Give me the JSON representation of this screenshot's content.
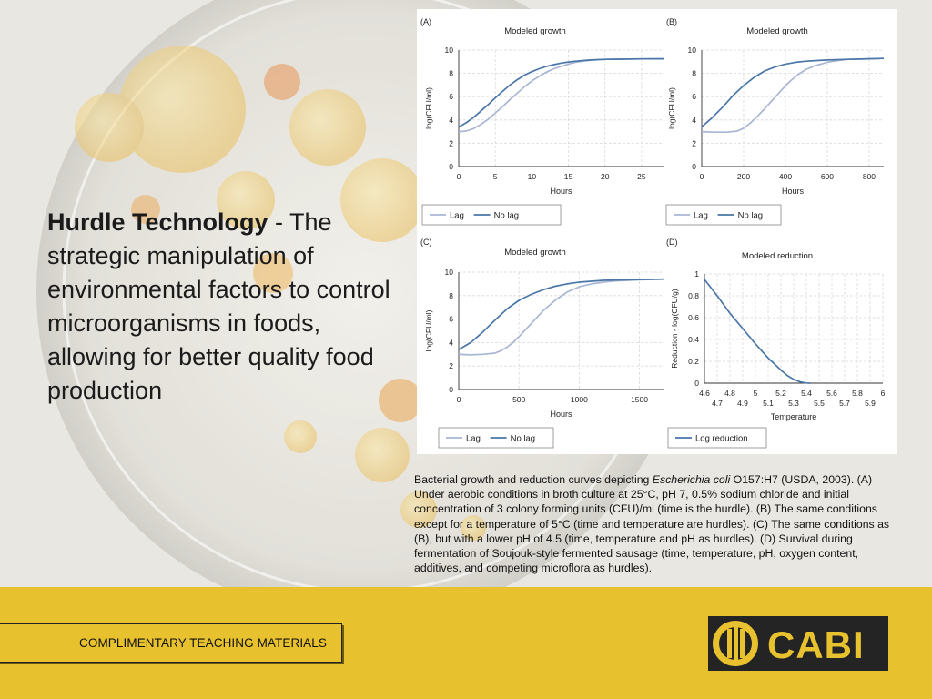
{
  "heading": {
    "bold": "Hurdle Technology",
    "rest": " - The strategic manipulation of environmental factors to control microorganisms in foods, allowing for better quality food production"
  },
  "caption": {
    "before": "Bacterial growth and reduction curves depicting ",
    "italic": "Escherichia coli",
    "after": " O157:H7 (USDA, 2003). (A) Under aerobic conditions in broth culture at 25°C, pH 7, 0.5% sodium chloride and initial concentration of 3 colony forming units (CFU)/ml (time is the hurdle). (B) The same conditions except for a temperature of 5°C (time and temperature are hurdles). (C) The same conditions as (B), but with a lower pH of 4.5 (time, temperature and pH as hurdles). (D) Survival during fermentation of Soujouk-style fermented sausage (time, temperature, pH, oxygen content, additives, and competing microflora as hurdles)."
  },
  "footer": {
    "teaching": "COMPLIMENTARY TEACHING MATERIALS",
    "logo_text": "CABI"
  },
  "colors": {
    "lag": "#a9b6d2",
    "no_lag": "#4a76a8",
    "footer": "#e7c12e",
    "logo_bg": "#242424"
  },
  "chart_data": [
    {
      "panel": "(A)",
      "type": "line",
      "title": "Modeled growth",
      "xlabel": "Hours",
      "ylabel": "log(CFU/ml)",
      "xlim": [
        0,
        28
      ],
      "ylim": [
        0,
        10
      ],
      "xticks": [
        0,
        5,
        10,
        15,
        20,
        25
      ],
      "yticks": [
        0,
        2,
        4,
        6,
        8,
        10
      ],
      "grid": true,
      "legend": "bottom-left",
      "series": [
        {
          "name": "Lag",
          "x": [
            0,
            1,
            2,
            3,
            4,
            5,
            6,
            7,
            8,
            9,
            10,
            11,
            12,
            13,
            14,
            15,
            16,
            17,
            18,
            20,
            22,
            25,
            28
          ],
          "y": [
            3.0,
            3.05,
            3.25,
            3.6,
            4.05,
            4.6,
            5.15,
            5.75,
            6.3,
            6.85,
            7.35,
            7.75,
            8.1,
            8.4,
            8.6,
            8.8,
            8.95,
            9.05,
            9.12,
            9.2,
            9.22,
            9.24,
            9.25
          ]
        },
        {
          "name": "No lag",
          "x": [
            0,
            1,
            2,
            3,
            4,
            5,
            6,
            7,
            8,
            9,
            10,
            11,
            12,
            13,
            14,
            15,
            16,
            18,
            20,
            22,
            25,
            28
          ],
          "y": [
            3.4,
            3.75,
            4.2,
            4.75,
            5.3,
            5.9,
            6.45,
            7.0,
            7.45,
            7.85,
            8.15,
            8.4,
            8.6,
            8.75,
            8.88,
            8.98,
            9.05,
            9.15,
            9.2,
            9.22,
            9.24,
            9.25
          ]
        }
      ]
    },
    {
      "panel": "(B)",
      "type": "line",
      "title": "Modeled growth",
      "xlabel": "Hours",
      "ylabel": "log(CFU/ml)",
      "xlim": [
        0,
        870
      ],
      "ylim": [
        0,
        10
      ],
      "xticks": [
        0,
        200,
        400,
        600,
        800
      ],
      "yticks": [
        0,
        2,
        4,
        6,
        8,
        10
      ],
      "grid": true,
      "legend": "bottom-left",
      "series": [
        {
          "name": "Lag",
          "x": [
            0,
            60,
            120,
            170,
            200,
            230,
            260,
            300,
            340,
            380,
            420,
            460,
            500,
            540,
            600,
            650,
            700,
            800,
            870
          ],
          "y": [
            3.0,
            2.95,
            2.95,
            3.05,
            3.3,
            3.7,
            4.2,
            4.95,
            5.75,
            6.55,
            7.3,
            7.9,
            8.35,
            8.65,
            8.95,
            9.1,
            9.2,
            9.25,
            9.28
          ]
        },
        {
          "name": "No lag",
          "x": [
            0,
            50,
            100,
            150,
            200,
            250,
            300,
            350,
            400,
            450,
            500,
            600,
            700,
            800,
            870
          ],
          "y": [
            3.4,
            4.2,
            5.1,
            6.1,
            6.95,
            7.65,
            8.2,
            8.55,
            8.8,
            8.95,
            9.05,
            9.15,
            9.2,
            9.25,
            9.28
          ]
        }
      ]
    },
    {
      "panel": "(C)",
      "type": "line",
      "title": "Modeled growth",
      "xlabel": "Hours",
      "ylabel": "log(CFU/ml)",
      "xlim": [
        0,
        1700
      ],
      "ylim": [
        0,
        10
      ],
      "xticks": [
        0,
        500,
        1000,
        1500
      ],
      "yticks": [
        0,
        2,
        4,
        6,
        8,
        10
      ],
      "grid": true,
      "legend": "bottom-left",
      "series": [
        {
          "name": "Lag",
          "x": [
            0,
            100,
            200,
            300,
            350,
            400,
            450,
            500,
            600,
            700,
            800,
            900,
            1000,
            1100,
            1200,
            1300,
            1400,
            1500,
            1700
          ],
          "y": [
            3.0,
            2.95,
            3.0,
            3.1,
            3.3,
            3.6,
            4.0,
            4.5,
            5.6,
            6.7,
            7.6,
            8.3,
            8.75,
            9.0,
            9.15,
            9.25,
            9.3,
            9.35,
            9.4
          ]
        },
        {
          "name": "No lag",
          "x": [
            0,
            100,
            200,
            300,
            400,
            500,
            600,
            700,
            800,
            900,
            1000,
            1200,
            1400,
            1700
          ],
          "y": [
            3.4,
            4.0,
            4.9,
            5.9,
            6.85,
            7.6,
            8.1,
            8.5,
            8.8,
            9.0,
            9.15,
            9.3,
            9.35,
            9.4
          ]
        }
      ]
    },
    {
      "panel": "(D)",
      "type": "line",
      "title": "Modeled reduction",
      "xlabel": "Temperature",
      "ylabel": "Reduction - log(CFU/g)",
      "xlim": [
        4.6,
        6.0
      ],
      "ylim": [
        0,
        1
      ],
      "xticks_top": [
        4.6,
        4.8,
        5,
        5.2,
        5.4,
        5.6,
        5.8,
        6
      ],
      "xticks_bottom": [
        4.7,
        4.9,
        5.1,
        5.3,
        5.5,
        5.7,
        5.9
      ],
      "yticks": [
        0,
        0.2,
        0.4,
        0.6,
        0.8,
        1
      ],
      "grid": true,
      "legend": "bottom-left",
      "series": [
        {
          "name": "Log reduction",
          "x": [
            4.6,
            4.7,
            4.8,
            4.9,
            5.0,
            5.1,
            5.2,
            5.25,
            5.3,
            5.35,
            5.4,
            5.43
          ],
          "y": [
            0.95,
            0.8,
            0.64,
            0.5,
            0.36,
            0.23,
            0.12,
            0.07,
            0.035,
            0.012,
            0.002,
            0.0
          ]
        }
      ]
    }
  ]
}
